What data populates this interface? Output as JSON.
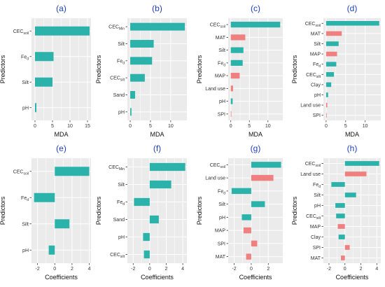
{
  "colors": {
    "teal": "#2bb3ab",
    "salmon": "#f08080",
    "panel_bg": "#ebebeb",
    "grid": "#ffffff"
  },
  "chart_data": [
    {
      "type": "bar",
      "orientation": "horizontal",
      "title": "(a)",
      "xlabel": "MDA",
      "ylabel": "Predictors",
      "xlim": [
        -1,
        16
      ],
      "xticks": [
        0,
        5,
        10,
        15
      ],
      "categories": [
        "CEC_soil",
        "Fe_d",
        "Silt",
        "pH"
      ],
      "category_labels": [
        {
          "base": "CEC",
          "sub": "soil"
        },
        {
          "base": "Fe",
          "sub": "d"
        },
        {
          "base": "Silt",
          "sub": ""
        },
        {
          "base": "pH",
          "sub": ""
        }
      ],
      "values": [
        15.6,
        5.3,
        5.0,
        0.4
      ],
      "colors": [
        "teal",
        "teal",
        "teal",
        "teal"
      ]
    },
    {
      "type": "bar",
      "orientation": "horizontal",
      "title": "(b)",
      "xlabel": "MDA",
      "ylabel": "Predictors",
      "xlim": [
        -0.7,
        14
      ],
      "xticks": [
        0,
        5,
        10
      ],
      "categories": [
        "CEC_Min",
        "Silt",
        "Fe_d",
        "CEC_silt",
        "Sand",
        "pH"
      ],
      "category_labels": [
        {
          "base": "CEC",
          "sub": "Min"
        },
        {
          "base": "Silt",
          "sub": ""
        },
        {
          "base": "Fe",
          "sub": "d"
        },
        {
          "base": "CEC",
          "sub": "silt"
        },
        {
          "base": "Sand",
          "sub": ""
        },
        {
          "base": "pH",
          "sub": ""
        }
      ],
      "values": [
        13.5,
        5.8,
        5.4,
        3.6,
        1.2,
        0.3
      ],
      "colors": [
        "teal",
        "teal",
        "teal",
        "teal",
        "teal",
        "teal"
      ]
    },
    {
      "type": "bar",
      "orientation": "horizontal",
      "title": "(c)",
      "xlabel": "MDA",
      "ylabel": "Predictors",
      "xlim": [
        -0.7,
        14
      ],
      "xticks": [
        0,
        5,
        10
      ],
      "categories": [
        "CEC_soil",
        "MAT",
        "Silt",
        "Fe_d",
        "MAP",
        "Land use",
        "pH",
        "SPI"
      ],
      "category_labels": [
        {
          "base": "CEC",
          "sub": "soil"
        },
        {
          "base": "MAT",
          "sub": ""
        },
        {
          "base": "Silt",
          "sub": ""
        },
        {
          "base": "Fe",
          "sub": "d"
        },
        {
          "base": "MAP",
          "sub": ""
        },
        {
          "base": "Land use",
          "sub": ""
        },
        {
          "base": "pH",
          "sub": ""
        },
        {
          "base": "SPI",
          "sub": ""
        }
      ],
      "values": [
        13.3,
        3.9,
        3.4,
        3.2,
        2.4,
        0.6,
        0.5,
        0.15
      ],
      "colors": [
        "teal",
        "salmon",
        "teal",
        "teal",
        "salmon",
        "salmon",
        "teal",
        "salmon"
      ]
    },
    {
      "type": "bar",
      "orientation": "horizontal",
      "title": "(d)",
      "xlabel": "MDA",
      "ylabel": "Predictors",
      "xlim": [
        -0.7,
        14
      ],
      "xticks": [
        0,
        5,
        10
      ],
      "categories": [
        "CEC_soil",
        "MAT",
        "Silt",
        "MAP",
        "Fe_d",
        "CEC_silt",
        "Clay",
        "pH",
        "Land use",
        "SPI"
      ],
      "category_labels": [
        {
          "base": "CEC",
          "sub": "soil"
        },
        {
          "base": "MAT",
          "sub": ""
        },
        {
          "base": "Silt",
          "sub": ""
        },
        {
          "base": "MAP",
          "sub": ""
        },
        {
          "base": "Fe",
          "sub": "d"
        },
        {
          "base": "CEC",
          "sub": "silt"
        },
        {
          "base": "Clay",
          "sub": ""
        },
        {
          "base": "pH",
          "sub": ""
        },
        {
          "base": "Land use",
          "sub": ""
        },
        {
          "base": "SPI",
          "sub": ""
        }
      ],
      "values": [
        13.6,
        4.0,
        3.2,
        2.8,
        2.6,
        2.0,
        1.3,
        0.5,
        0.3,
        0.1
      ],
      "colors": [
        "teal",
        "salmon",
        "teal",
        "salmon",
        "teal",
        "teal",
        "teal",
        "teal",
        "salmon",
        "salmon"
      ]
    },
    {
      "type": "bar",
      "orientation": "horizontal",
      "title": "(e)",
      "xlabel": "Coefficients",
      "ylabel": "Predictors",
      "xlim": [
        -2.7,
        4.2
      ],
      "xticks": [
        -2,
        0,
        2,
        4
      ],
      "categories": [
        "CEC_soil",
        "Fe_d",
        "Silt",
        "pH"
      ],
      "category_labels": [
        {
          "base": "CEC",
          "sub": "soil"
        },
        {
          "base": "Fe",
          "sub": "d"
        },
        {
          "base": "Silt",
          "sub": ""
        },
        {
          "base": "pH",
          "sub": ""
        }
      ],
      "values": [
        4.0,
        -2.4,
        1.7,
        -0.7
      ],
      "colors": [
        "teal",
        "teal",
        "teal",
        "teal"
      ]
    },
    {
      "type": "bar",
      "orientation": "horizontal",
      "title": "(f)",
      "xlabel": "Coefficients",
      "ylabel": "Predictors",
      "xlim": [
        -2.7,
        4.5
      ],
      "xticks": [
        -2,
        0,
        2,
        4
      ],
      "categories": [
        "CEC_Min",
        "Silt",
        "Fe_d",
        "Sand",
        "pH",
        "CEC_silt"
      ],
      "category_labels": [
        {
          "base": "CEC",
          "sub": "Min"
        },
        {
          "base": "Silt",
          "sub": ""
        },
        {
          "base": "Fe",
          "sub": "d"
        },
        {
          "base": "Sand",
          "sub": ""
        },
        {
          "base": "pH",
          "sub": ""
        },
        {
          "base": "CEC",
          "sub": "silt"
        }
      ],
      "values": [
        4.3,
        2.6,
        -1.9,
        1.1,
        -0.8,
        -0.7
      ],
      "colors": [
        "teal",
        "teal",
        "teal",
        "teal",
        "teal",
        "teal"
      ]
    },
    {
      "type": "bar",
      "orientation": "horizontal",
      "title": "(g)",
      "xlabel": "Coefficients",
      "ylabel": "Predictors",
      "xlim": [
        -2.7,
        3.7
      ],
      "xticks": [
        -2,
        0,
        2
      ],
      "categories": [
        "CEC_soil",
        "Land use",
        "Fe_d",
        "Silt",
        "pH",
        "MAP",
        "SPI",
        "MAT"
      ],
      "category_labels": [
        {
          "base": "CEC",
          "sub": "soil"
        },
        {
          "base": "Land use",
          "sub": ""
        },
        {
          "base": "Fe",
          "sub": "d"
        },
        {
          "base": "Silt",
          "sub": ""
        },
        {
          "base": "pH",
          "sub": ""
        },
        {
          "base": "MAP",
          "sub": ""
        },
        {
          "base": "SPI",
          "sub": ""
        },
        {
          "base": "MAT",
          "sub": ""
        }
      ],
      "values": [
        3.5,
        2.6,
        -2.3,
        1.6,
        -1.1,
        -0.9,
        0.7,
        -0.6
      ],
      "colors": [
        "teal",
        "salmon",
        "teal",
        "teal",
        "teal",
        "salmon",
        "salmon",
        "salmon"
      ]
    },
    {
      "type": "bar",
      "orientation": "horizontal",
      "title": "(h)",
      "xlabel": "Coefficients",
      "ylabel": "Predictors",
      "xlim": [
        -2.7,
        4.5
      ],
      "xticks": [
        -2,
        0,
        2,
        4
      ],
      "categories": [
        "CEC_soil",
        "Land use",
        "Fe_d",
        "Silt",
        "pH",
        "CEC_silt",
        "MAP",
        "Clay",
        "SPI",
        "MAT"
      ],
      "category_labels": [
        {
          "base": "CEC",
          "sub": "soil"
        },
        {
          "base": "Land use",
          "sub": ""
        },
        {
          "base": "Fe",
          "sub": "d"
        },
        {
          "base": "Silt",
          "sub": ""
        },
        {
          "base": "pH",
          "sub": ""
        },
        {
          "base": "CEC",
          "sub": "silt"
        },
        {
          "base": "MAP",
          "sub": ""
        },
        {
          "base": "Clay",
          "sub": ""
        },
        {
          "base": "SPI",
          "sub": ""
        },
        {
          "base": "MAT",
          "sub": ""
        }
      ],
      "values": [
        4.3,
        2.7,
        -1.7,
        1.4,
        -1.2,
        -1.1,
        -0.9,
        -0.8,
        0.6,
        -0.5
      ],
      "colors": [
        "teal",
        "salmon",
        "teal",
        "teal",
        "teal",
        "teal",
        "salmon",
        "teal",
        "salmon",
        "salmon"
      ]
    }
  ]
}
